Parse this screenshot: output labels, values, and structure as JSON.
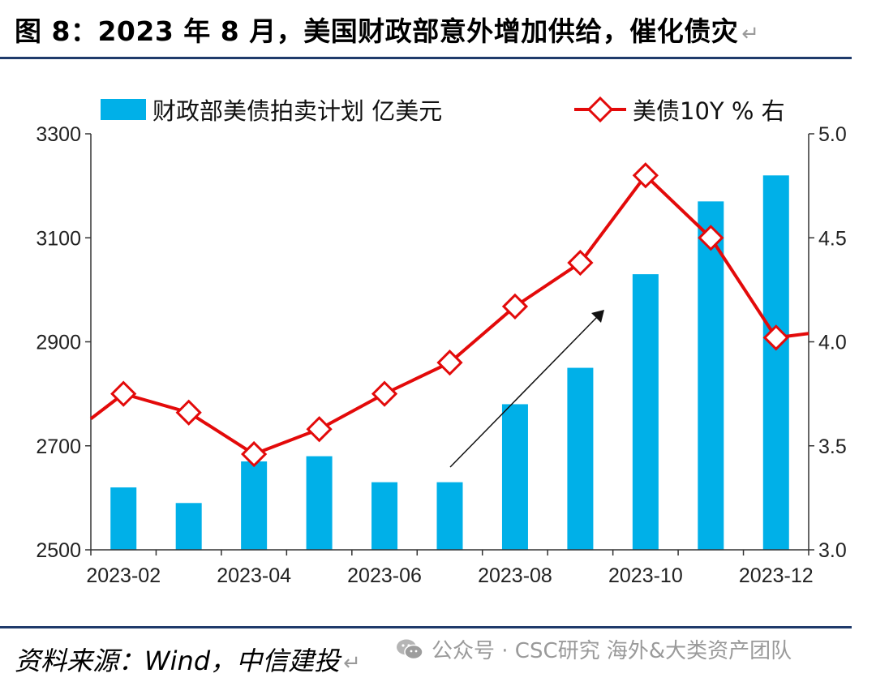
{
  "page": {
    "title": "图 8：2023 年 8 月，美国财政部意外增加供给，催化债灾",
    "source": "资料来源：Wind，中信建投",
    "watermark": "公众号 · CSC研究 海外&大类资产团队"
  },
  "colors": {
    "bar": "#00b0e8",
    "line": "#e30a0a",
    "rule": "#1f3a6b",
    "arrow": "#111111"
  },
  "icons": {
    "watermark": "wechat-icon",
    "paragraph_marks": "return-arrow-icon"
  },
  "chart_data": {
    "type": "bar+line",
    "categories": [
      "2023-02",
      "2023-03",
      "2023-04",
      "2023-05",
      "2023-06",
      "2023-07",
      "2023-08",
      "2023-09",
      "2023-10",
      "2023-11",
      "2023-12"
    ],
    "xticks": [
      "2023-02",
      "2023-04",
      "2023-06",
      "2023-08",
      "2023-10",
      "2023-12"
    ],
    "series": [
      {
        "name": "财政部美债拍卖计划 亿美元",
        "type": "bar",
        "axis": "left",
        "values": [
          2620,
          2590,
          2670,
          2680,
          2630,
          2630,
          2780,
          2850,
          3030,
          3170,
          3220
        ]
      },
      {
        "name": "美债10Y % 右",
        "type": "line",
        "axis": "right",
        "values": [
          3.75,
          3.66,
          3.46,
          3.58,
          3.75,
          3.9,
          4.17,
          4.38,
          4.8,
          4.5,
          4.02
        ]
      }
    ],
    "y_left": {
      "lim": [
        2500,
        3300
      ],
      "ticks": [
        "2500",
        "2700",
        "2900",
        "3100",
        "3300"
      ]
    },
    "y_right": {
      "lim": [
        3.0,
        5.0
      ],
      "ticks": [
        "3.0",
        "3.5",
        "4.0",
        "4.5",
        "5.0"
      ]
    },
    "legend_position": "top",
    "grid": false,
    "annotation": "upward arrow"
  }
}
